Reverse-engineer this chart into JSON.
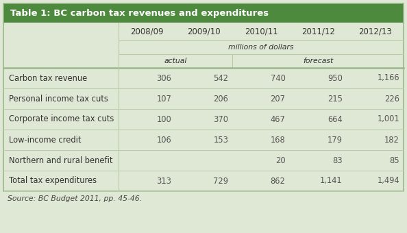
{
  "title": "Table 1: BC carbon tax revenues and expenditures",
  "title_bg": "#4e8a3e",
  "title_color": "#ffffff",
  "table_bg": "#dfe8d4",
  "row_bg": "#dfe8d4",
  "source_text": "Source: BC Budget 2011, pp. 45-46.",
  "col_headers": [
    "2008/09",
    "2009/10",
    "2010/11",
    "2011/12",
    "2012/13"
  ],
  "sub_header1": "millions of dollars",
  "sub_header2_actual": "actual",
  "sub_header2_forecast": "forecast",
  "rows": [
    {
      "label": "Carbon tax revenue",
      "values": [
        "306",
        "542",
        "740",
        "950",
        "1,166"
      ]
    },
    {
      "label": "Personal income tax cuts",
      "values": [
        "107",
        "206",
        "207",
        "215",
        "226"
      ]
    },
    {
      "label": "Corporate income tax cuts",
      "values": [
        "100",
        "370",
        "467",
        "664",
        "1,001"
      ]
    },
    {
      "label": "Low-income credit",
      "values": [
        "106",
        "153",
        "168",
        "179",
        "182"
      ]
    },
    {
      "label": "Northern and rural benefit",
      "values": [
        "",
        "",
        "20",
        "83",
        "85"
      ]
    },
    {
      "label": "Total tax expenditures",
      "values": [
        "313",
        "729",
        "862",
        "1,141",
        "1,494"
      ]
    }
  ],
  "text_color_label": "#333333",
  "text_color_value": "#555555",
  "border_color": "#9ab88a",
  "line_color": "#b8cca8",
  "header_text_color": "#333333",
  "source_color": "#444444",
  "fig_bg": "#dfe8d4"
}
